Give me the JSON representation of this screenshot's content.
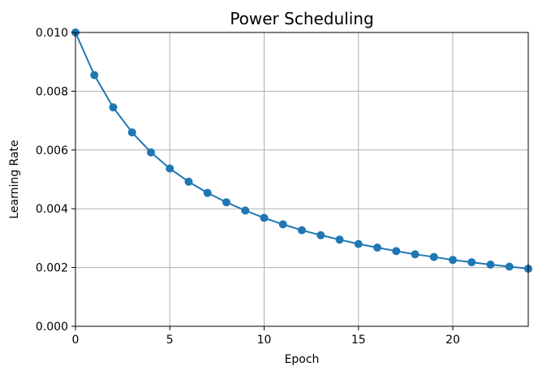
{
  "chart_data": {
    "type": "line",
    "title": "Power Scheduling",
    "xlabel": "Epoch",
    "ylabel": "Learning Rate",
    "xlim": [
      0,
      24
    ],
    "ylim": [
      0,
      0.01
    ],
    "grid": true,
    "x_ticks": [
      0,
      5,
      10,
      15,
      20
    ],
    "x_tick_labels": [
      "0",
      "5",
      "10",
      "15",
      "20"
    ],
    "y_ticks": [
      0,
      0.002,
      0.004,
      0.006,
      0.008,
      0.01
    ],
    "y_tick_labels": [
      "0.000",
      "0.002",
      "0.004",
      "0.006",
      "0.008",
      "0.010"
    ],
    "series": [
      {
        "x": [
          0,
          1,
          2,
          3,
          4,
          5,
          6,
          7,
          8,
          9,
          10,
          11,
          12,
          13,
          14,
          15,
          16,
          17,
          18,
          19,
          20,
          21,
          22,
          23,
          24
        ],
        "values": [
          0.01,
          0.00855,
          0.00745,
          0.0066,
          0.00592,
          0.00537,
          0.00492,
          0.00454,
          0.00422,
          0.00394,
          0.00369,
          0.00347,
          0.00327,
          0.0031,
          0.00295,
          0.0028,
          0.00268,
          0.00256,
          0.00245,
          0.00236,
          0.00226,
          0.00218,
          0.0021,
          0.00203,
          0.00196
        ],
        "color": "#1f77b4"
      }
    ]
  }
}
